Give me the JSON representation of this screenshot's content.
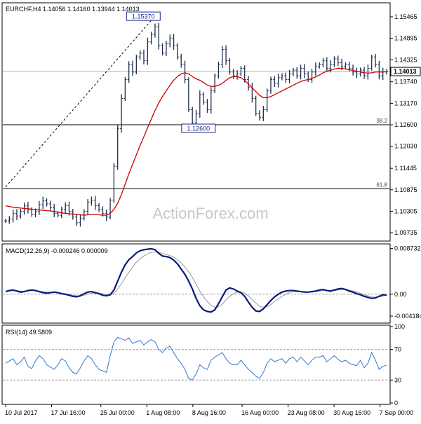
{
  "chart_data": {
    "type": "line",
    "price_panel": {
      "header": "EURCHF,H4  1.14056 1.14160 1.13944 1.14013",
      "watermark": "ActionForex.com",
      "ylim": [
        1.0955,
        1.158
      ],
      "y_ticks": [
        "1.15465",
        "1.14895",
        "1.14325",
        "1.13740",
        "1.13170",
        "1.12600",
        "1.12030",
        "1.11445",
        "1.10875",
        "1.10305",
        "1.09735"
      ],
      "current_price": "1.14013",
      "annotations": [
        {
          "label": "1.15370",
          "value": 1.1537
        },
        {
          "label": "1.12600",
          "value": 1.126
        }
      ],
      "fib_levels": [
        {
          "label": "38.2",
          "value": 1.126
        },
        {
          "label": "61.8",
          "value": 1.109
        }
      ],
      "trendline": [
        [
          0,
          1.1095
        ],
        [
          39,
          1.1537
        ]
      ],
      "close": [
        1.1005,
        1.101,
        1.1025,
        1.1018,
        1.103,
        1.1045,
        1.1035,
        1.1022,
        1.103,
        1.1048,
        1.1058,
        1.105,
        1.104,
        1.1025,
        1.102,
        1.1035,
        1.1045,
        1.103,
        1.1015,
        1.1,
        1.1012,
        1.103,
        1.1055,
        1.106,
        1.1045,
        1.1035,
        1.1025,
        1.1015,
        1.106,
        1.115,
        1.125,
        1.133,
        1.138,
        1.142,
        1.14,
        1.144,
        1.145,
        1.143,
        1.148,
        1.15,
        1.152,
        1.147,
        1.145,
        1.1475,
        1.149,
        1.147,
        1.144,
        1.142,
        1.138,
        1.13,
        1.1265,
        1.129,
        1.134,
        1.132,
        1.13,
        1.135,
        1.139,
        1.142,
        1.146,
        1.143,
        1.14,
        1.139,
        1.1395,
        1.141,
        1.138,
        1.136,
        1.133,
        1.129,
        1.128,
        1.13,
        1.135,
        1.138,
        1.137,
        1.1385,
        1.139,
        1.138,
        1.1395,
        1.1405,
        1.139,
        1.141,
        1.1395,
        1.138,
        1.14,
        1.1415,
        1.142,
        1.143,
        1.141,
        1.142,
        1.1435,
        1.1425,
        1.1415,
        1.142,
        1.141,
        1.14,
        1.1395,
        1.1405,
        1.139,
        1.141,
        1.144,
        1.142,
        1.139,
        1.14,
        1.1401
      ],
      "ma": [
        1.1045,
        1.1043,
        1.1041,
        1.104,
        1.1039,
        1.1038,
        1.1037,
        1.1036,
        1.1035,
        1.1034,
        1.1033,
        1.1032,
        1.1031,
        1.103,
        1.1028,
        1.1026,
        1.1025,
        1.1024,
        1.1023,
        1.1022,
        1.1021,
        1.102,
        1.1021,
        1.1022,
        1.1022,
        1.1021,
        1.102,
        1.102,
        1.1025,
        1.1035,
        1.1052,
        1.1075,
        1.1102,
        1.113,
        1.1155,
        1.118,
        1.1205,
        1.1228,
        1.1252,
        1.1275,
        1.1298,
        1.1318,
        1.1335,
        1.135,
        1.1365,
        1.1378,
        1.1388,
        1.1395,
        1.1398,
        1.1395,
        1.1388,
        1.1382,
        1.1378,
        1.1372,
        1.1365,
        1.1362,
        1.1362,
        1.1365,
        1.137,
        1.1378,
        1.1385,
        1.1388,
        1.1388,
        1.1385,
        1.1378,
        1.1368,
        1.1358,
        1.1348,
        1.1338,
        1.1332,
        1.1332,
        1.1335,
        1.134,
        1.1345,
        1.135,
        1.1355,
        1.136,
        1.1365,
        1.137,
        1.1375,
        1.1378,
        1.138,
        1.1383,
        1.1387,
        1.1392,
        1.1398,
        1.1402,
        1.1405,
        1.1408,
        1.141,
        1.141,
        1.1408,
        1.1406,
        1.1404,
        1.1402,
        1.14,
        1.1398,
        1.1397,
        1.1398,
        1.14,
        1.14,
        1.14,
        1.1401
      ]
    },
    "macd_panel": {
      "header": "MACD(12,26,9) -0.000246 0.000009",
      "ylim": [
        -0.00525,
        0.00935
      ],
      "y_ticks": [
        "0.008732",
        "0.00",
        "-0.004184"
      ],
      "macd": [
        0.0005,
        0.0007,
        0.0008,
        0.0006,
        0.0004,
        0.0005,
        0.0007,
        0.0008,
        0.0007,
        0.0005,
        0.0003,
        0.0002,
        0.0003,
        0.0004,
        0.0003,
        0.0001,
        0.0,
        -0.0002,
        -0.0004,
        -0.0005,
        -0.0003,
        0.0001,
        0.0004,
        0.0005,
        0.0003,
        0.0001,
        -0.0002,
        -0.0003,
        -0.0001,
        0.0008,
        0.0025,
        0.0042,
        0.0056,
        0.0066,
        0.0072,
        0.0079,
        0.0083,
        0.0085,
        0.0086,
        0.0087,
        0.0085,
        0.0078,
        0.0073,
        0.0072,
        0.007,
        0.0065,
        0.0058,
        0.0048,
        0.0038,
        0.0025,
        0.001,
        -0.0008,
        -0.0022,
        -0.003,
        -0.0033,
        -0.0034,
        -0.003,
        -0.0018,
        -0.0005,
        0.0008,
        0.0012,
        0.001,
        0.0006,
        0.0003,
        -0.0004,
        -0.0015,
        -0.0025,
        -0.0032,
        -0.0033,
        -0.0028,
        -0.002,
        -0.0012,
        -0.0005,
        0.0,
        0.0004,
        0.0006,
        0.0007,
        0.0007,
        0.0006,
        0.0005,
        0.0004,
        0.0004,
        0.0005,
        0.0006,
        0.0008,
        0.0009,
        0.0007,
        0.0006,
        0.0008,
        0.001,
        0.0011,
        0.0009,
        0.0006,
        0.0004,
        0.0001,
        -0.0001,
        -0.0004,
        -0.0006,
        -0.0008,
        -0.0007,
        -0.0004,
        -0.0001,
        -0.0002
      ],
      "signal": [
        0.0005,
        0.0006,
        0.0007,
        0.0007,
        0.0006,
        0.0006,
        0.0006,
        0.0007,
        0.0007,
        0.0006,
        0.0005,
        0.0004,
        0.0004,
        0.0004,
        0.0003,
        0.0002,
        0.0001,
        0.0,
        -0.0002,
        -0.0003,
        -0.0003,
        -0.0002,
        0.0,
        0.0002,
        0.0002,
        0.0002,
        0.0001,
        -0.0001,
        -0.0001,
        0.0002,
        0.001,
        0.002,
        0.0031,
        0.0042,
        0.0052,
        0.0061,
        0.0068,
        0.0073,
        0.0077,
        0.008,
        0.0081,
        0.008,
        0.0078,
        0.0076,
        0.0074,
        0.0071,
        0.0066,
        0.006,
        0.0052,
        0.0043,
        0.0032,
        0.0019,
        0.0006,
        -0.0005,
        -0.0014,
        -0.0021,
        -0.0025,
        -0.0024,
        -0.0019,
        -0.0011,
        -0.0004,
        0.0001,
        0.0004,
        0.0004,
        0.0002,
        -0.0003,
        -0.001,
        -0.0017,
        -0.0023,
        -0.0025,
        -0.0024,
        -0.002,
        -0.0014,
        -0.0009,
        -0.0004,
        0.0,
        0.0003,
        0.0005,
        0.0005,
        0.0005,
        0.0005,
        0.0004,
        0.0004,
        0.0005,
        0.0006,
        0.0007,
        0.0007,
        0.0007,
        0.0007,
        0.0008,
        0.0009,
        0.0009,
        0.0008,
        0.0006,
        0.0004,
        0.0002,
        -0.0001,
        -0.0003,
        -0.0005,
        -0.0006,
        -0.0005,
        -0.0004,
        0.0
      ]
    },
    "rsi_panel": {
      "header": "RSI(14) 49.5809",
      "ylim": [
        0,
        100
      ],
      "y_ticks": [
        {
          "label": "100",
          "value": 100
        },
        {
          "label": "70",
          "value": 70
        },
        {
          "label": "30",
          "value": 30
        },
        {
          "label": "0",
          "value": 0
        }
      ],
      "rsi": [
        52,
        55,
        58,
        50,
        54,
        60,
        48,
        45,
        55,
        62,
        58,
        50,
        47,
        44,
        50,
        58,
        55,
        46,
        40,
        38,
        46,
        55,
        62,
        58,
        50,
        44,
        42,
        40,
        62,
        80,
        86,
        84,
        82,
        85,
        78,
        80,
        82,
        76,
        80,
        83,
        80,
        70,
        66,
        72,
        74,
        66,
        58,
        52,
        44,
        32,
        30,
        38,
        50,
        46,
        44,
        56,
        60,
        63,
        66,
        58,
        52,
        50,
        50,
        56,
        50,
        44,
        40,
        35,
        32,
        40,
        52,
        58,
        54,
        56,
        58,
        52,
        58,
        60,
        54,
        60,
        55,
        50,
        56,
        60,
        60,
        62,
        54,
        58,
        62,
        57,
        54,
        56,
        52,
        50,
        49,
        56,
        46,
        52,
        66,
        56,
        44,
        48,
        49.58
      ]
    },
    "x_ticks": [
      {
        "label": "10 Jul 2017",
        "i": 0
      },
      {
        "label": "17 Jul 16:00",
        "i": 14
      },
      {
        "label": "25 Jul 00:00",
        "i": 29
      },
      {
        "label": "1 Aug 08:00",
        "i": 43
      },
      {
        "label": "8 Aug 16:00",
        "i": 57
      },
      {
        "label": "16 Aug 00:00",
        "i": 72
      },
      {
        "label": "23 Aug 08:00",
        "i": 86
      },
      {
        "label": "30 Aug 16:00",
        "i": 100
      },
      {
        "label": "7 Sep 00:00",
        "i": 114
      }
    ]
  },
  "colors": {
    "price_bars": "#1f2d4d",
    "moving_average": "#cc0000",
    "macd_line": "#0a1a7a",
    "signal_line": "#9a9a9a",
    "rsi_line": "#2f78d4",
    "level_line": "#000000",
    "annotation_border": "#1a2a8a",
    "grid_dash": "#9a9a9a",
    "watermark": "#c8c8c8"
  }
}
